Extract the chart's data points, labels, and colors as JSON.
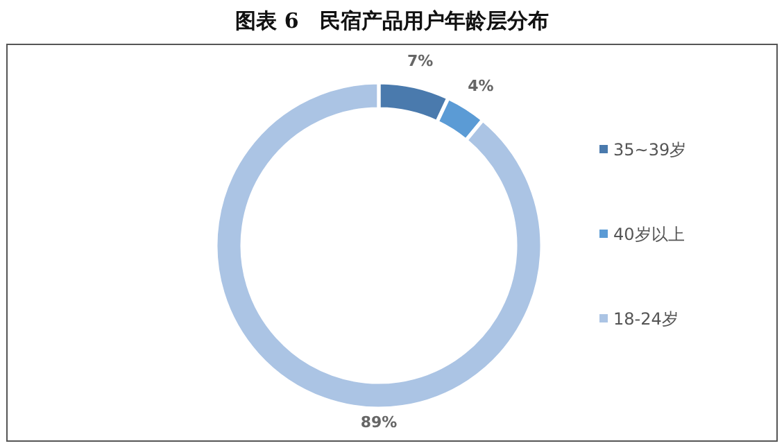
{
  "chart_data": {
    "type": "donut",
    "title": "图表 6　民宿产品用户年龄层分布",
    "categories": [
      "35~39岁",
      "40岁以上",
      "18-24岁"
    ],
    "values": [
      7,
      4,
      89
    ],
    "colors": [
      "#4a7aad",
      "#5b9bd5",
      "#abc4e4"
    ],
    "value_labels": [
      "7%",
      "4%",
      "89%"
    ],
    "legend": "right"
  }
}
